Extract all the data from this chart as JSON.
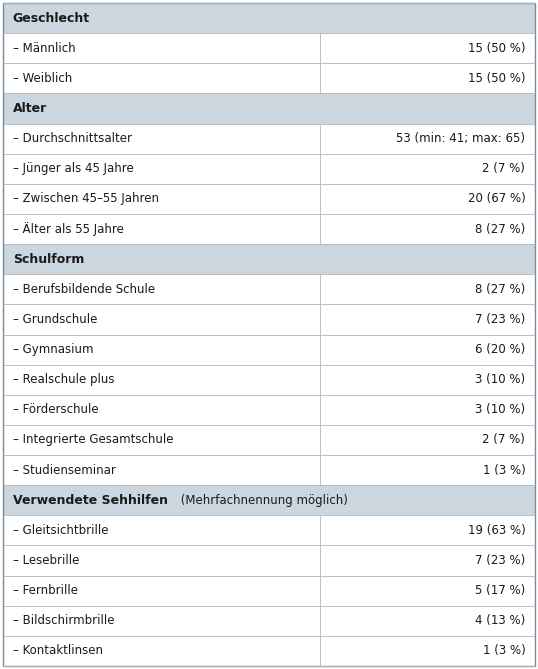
{
  "rows": [
    {
      "type": "header",
      "label": "Geschlecht",
      "label2": "",
      "value": ""
    },
    {
      "type": "data",
      "label": "– Männlich",
      "label2": "",
      "value": "15 (50 %)"
    },
    {
      "type": "data",
      "label": "– Weiblich",
      "label2": "",
      "value": "15 (50 %)"
    },
    {
      "type": "header",
      "label": "Alter",
      "label2": "",
      "value": ""
    },
    {
      "type": "data",
      "label": "– Durchschnittsalter",
      "label2": "",
      "value": "53 (min: 41; max: 65)"
    },
    {
      "type": "data",
      "label": "– Jünger als 45 Jahre",
      "label2": "",
      "value": "2 (7 %)"
    },
    {
      "type": "data",
      "label": "– Zwischen 45–55 Jahren",
      "label2": "",
      "value": "20 (67 %)"
    },
    {
      "type": "data",
      "label": "– Älter als 55 Jahre",
      "label2": "",
      "value": "8 (27 %)"
    },
    {
      "type": "header",
      "label": "Schulform",
      "label2": "",
      "value": ""
    },
    {
      "type": "data",
      "label": "– Berufsbildende Schule",
      "label2": "",
      "value": "8 (27 %)"
    },
    {
      "type": "data",
      "label": "– Grundschule",
      "label2": "",
      "value": "7 (23 %)"
    },
    {
      "type": "data",
      "label": "– Gymnasium",
      "label2": "",
      "value": "6 (20 %)"
    },
    {
      "type": "data",
      "label": "– Realschule plus",
      "label2": "",
      "value": "3 (10 %)"
    },
    {
      "type": "data",
      "label": "– Förderschule",
      "label2": "",
      "value": "3 (10 %)"
    },
    {
      "type": "data",
      "label": "– Integrierte Gesamtschule",
      "label2": "",
      "value": "2 (7 %)"
    },
    {
      "type": "data",
      "label": "– Studienseminar",
      "label2": "",
      "value": "1 (3 %)"
    },
    {
      "type": "header_mixed",
      "label": "Verwendete Sehhilfen",
      "label2": " (Mehrfachnennung möglich)",
      "value": ""
    },
    {
      "type": "data",
      "label": "– Gleitsichtbrille",
      "label2": "",
      "value": "19 (63 %)"
    },
    {
      "type": "data",
      "label": "– Lesebrille",
      "label2": "",
      "value": "7 (23 %)"
    },
    {
      "type": "data",
      "label": "– Fernbrille",
      "label2": "",
      "value": "5 (17 %)"
    },
    {
      "type": "data",
      "label": "– Bildschirmbrille",
      "label2": "",
      "value": "4 (13 %)"
    },
    {
      "type": "data",
      "label": "– Kontaktlinsen",
      "label2": "",
      "value": "1 (3 %)"
    }
  ],
  "header_bg": "#ccd6de",
  "data_bg": "#ffffff",
  "border_color": "#b0b8be",
  "outer_border_color": "#7a8a96",
  "text_color": "#1a1a1a",
  "font_size": 8.5,
  "header_font_size": 9.0,
  "col_split": 0.595,
  "fig_width": 5.38,
  "fig_height": 6.69,
  "dpi": 100
}
